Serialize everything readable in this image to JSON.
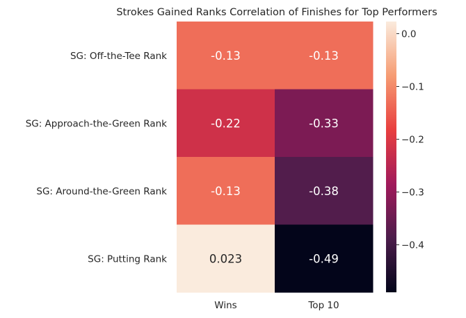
{
  "chart_data": {
    "type": "heatmap",
    "title": "Strokes Gained Ranks Correlation of Finishes for Top Performers",
    "rows": [
      "SG: Off-the-Tee Rank",
      "SG: Approach-the-Green Rank",
      "SG: Around-the-Green Rank",
      "SG: Putting Rank"
    ],
    "columns": [
      "Wins",
      "Top 10"
    ],
    "values": [
      [
        -0.13,
        -0.13
      ],
      [
        -0.22,
        -0.33
      ],
      [
        -0.13,
        -0.38
      ],
      [
        0.023,
        -0.49
      ]
    ],
    "annotations": [
      [
        "-0.13",
        "-0.13"
      ],
      [
        "-0.22",
        "-0.33"
      ],
      [
        "-0.13",
        "-0.38"
      ],
      [
        "0.023",
        "-0.49"
      ]
    ],
    "colorbar": {
      "colormap": "rocket",
      "vmin": -0.49,
      "vmax": 0.023,
      "ticks": [
        0.0,
        -0.1,
        -0.2,
        -0.3,
        -0.4
      ],
      "tick_labels": [
        "0.0",
        "−0.1",
        "−0.2",
        "−0.3",
        "−0.4"
      ],
      "colors": [
        "#03051a",
        "#4c1d4b",
        "#a11a5b",
        "#e83f3f",
        "#f69c73",
        "#faebdd"
      ]
    },
    "grid": false
  }
}
